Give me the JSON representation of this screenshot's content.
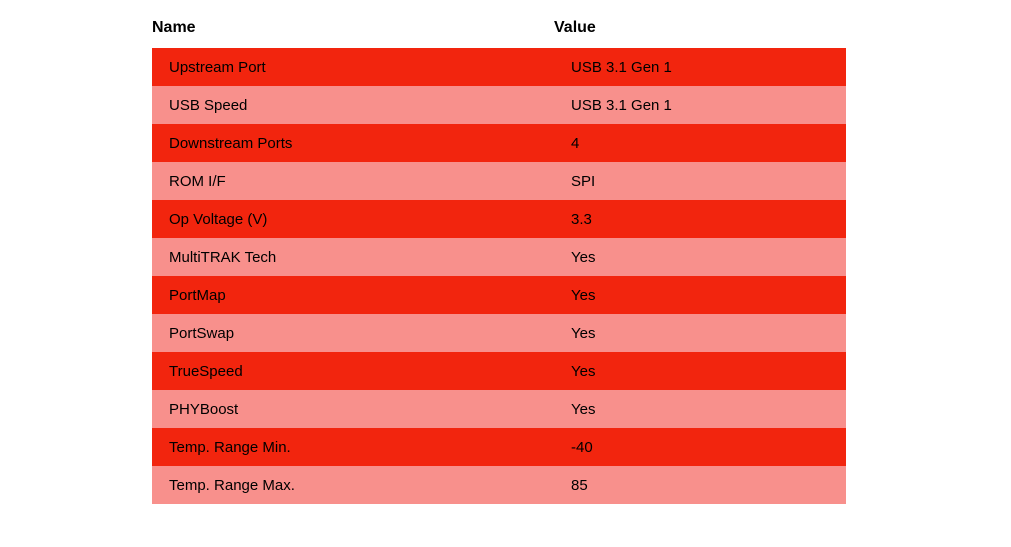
{
  "page": {
    "background": "#ffffff",
    "text_color": "#000000"
  },
  "table": {
    "columns": [
      "Name",
      "Value"
    ],
    "rows": [
      {
        "name": "Upstream Port",
        "value": "USB 3.1 Gen 1"
      },
      {
        "name": "USB Speed",
        "value": "USB 3.1 Gen 1"
      },
      {
        "name": "Downstream Ports",
        "value": "4"
      },
      {
        "name": "ROM I/F",
        "value": "SPI"
      },
      {
        "name": "Op Voltage (V)",
        "value": "3.3"
      },
      {
        "name": "MultiTRAK Tech",
        "value": "Yes"
      },
      {
        "name": "PortMap",
        "value": "Yes"
      },
      {
        "name": "PortSwap",
        "value": "Yes"
      },
      {
        "name": "TrueSpeed",
        "value": "Yes"
      },
      {
        "name": "PHYBoost",
        "value": "Yes"
      },
      {
        "name": "Temp. Range Min.",
        "value": "-40"
      },
      {
        "name": "Temp. Range Max.",
        "value": "85"
      }
    ],
    "colors": {
      "row_bright": "#f2250e",
      "row_light": "#f8908c",
      "header_text": "#000000",
      "cell_text": "#000000"
    }
  },
  "chart_data": {
    "type": "table",
    "title": "",
    "columns": [
      "Name",
      "Value"
    ],
    "rows": [
      [
        "Upstream Port",
        "USB 3.1 Gen 1"
      ],
      [
        "USB Speed",
        "USB 3.1 Gen 1"
      ],
      [
        "Downstream Ports",
        "4"
      ],
      [
        "ROM I/F",
        "SPI"
      ],
      [
        "Op Voltage (V)",
        "3.3"
      ],
      [
        "MultiTRAK Tech",
        "Yes"
      ],
      [
        "PortMap",
        "Yes"
      ],
      [
        "PortSwap",
        "Yes"
      ],
      [
        "TrueSpeed",
        "Yes"
      ],
      [
        "PHYBoost",
        "Yes"
      ],
      [
        "Temp. Range Min.",
        "-40"
      ],
      [
        "Temp. Range Max.",
        "85"
      ]
    ],
    "layout_hints": {
      "zebra_striping": true,
      "odd_row_color": "#f2250e",
      "even_row_color": "#f8908c",
      "header_background": "#ffffff",
      "gridlines": false
    }
  }
}
